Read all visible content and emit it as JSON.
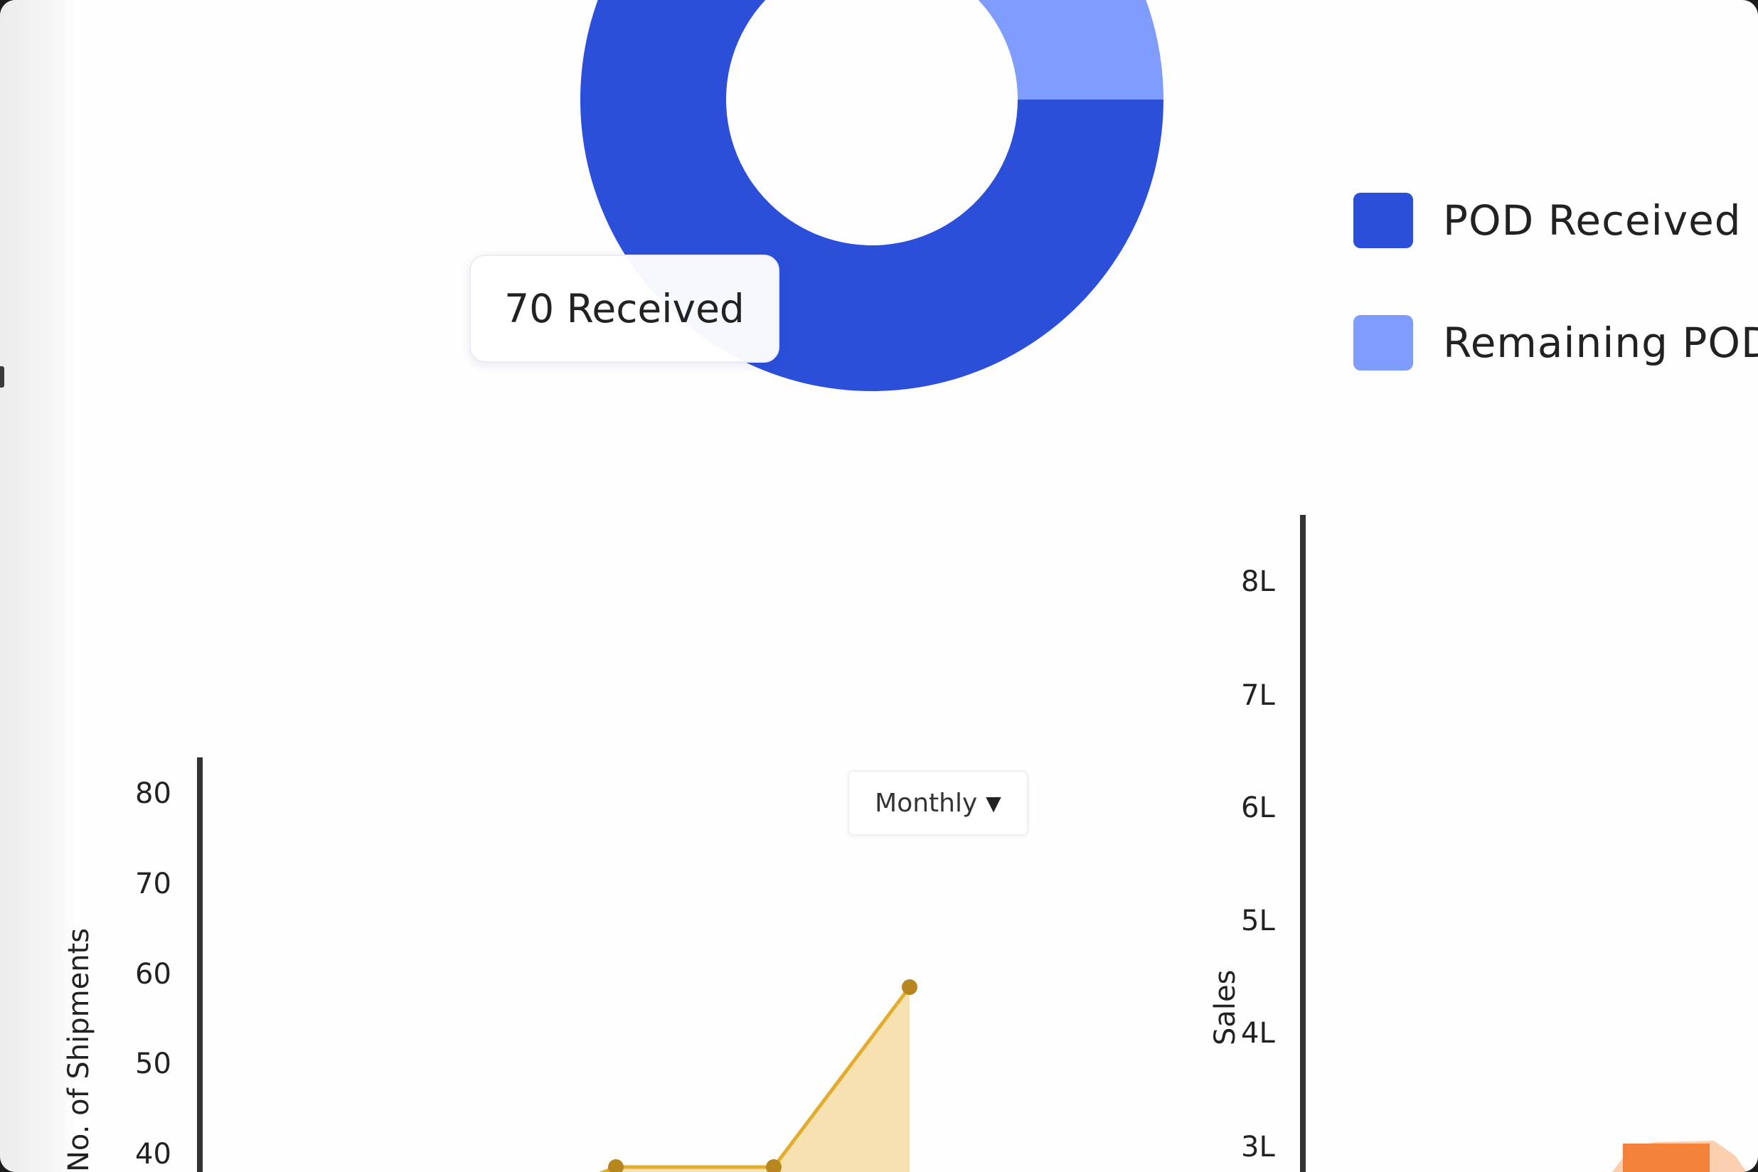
{
  "pod_chart": {
    "tooltip": "70 Received",
    "legend": [
      {
        "label": "POD Received",
        "color": "#2b4fd9"
      },
      {
        "label": "Remaining POD",
        "color": "#7f9cff"
      }
    ],
    "chart_data": {
      "type": "pie",
      "variant": "donut",
      "labels": [
        "POD Received",
        "Remaining POD"
      ],
      "values": [
        70,
        10
      ],
      "colors": [
        "#2b4fd9",
        "#7f9cff"
      ]
    }
  },
  "shipments_chart": {
    "filter_label": "Monthly",
    "filter_icon": "caret-down-icon",
    "y_axis_title": "No. of Shipments",
    "y_ticks": [
      "80",
      "70",
      "60",
      "50",
      "40"
    ],
    "chart_data": {
      "type": "area",
      "ylabel": "No. of Shipments",
      "ylim": [
        0,
        85
      ],
      "x": [
        1,
        2,
        3
      ],
      "values": [
        40,
        40,
        60
      ],
      "color": "#e9b73d"
    }
  },
  "sales_chart": {
    "y_axis_title": "Sales",
    "y_ticks": [
      "8L",
      "7L",
      "6L",
      "5L",
      "4L",
      "3L"
    ],
    "chart_data": {
      "type": "bar",
      "ylabel": "Sales",
      "ylim": [
        0,
        8.6
      ],
      "color": "#f4813a"
    }
  }
}
